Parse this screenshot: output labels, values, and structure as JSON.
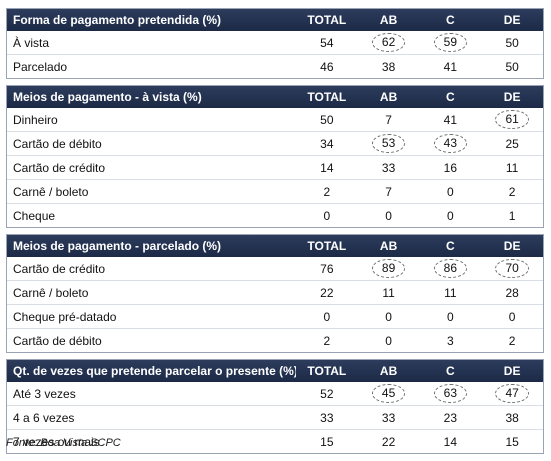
{
  "sections": [
    {
      "header": [
        "Forma de pagamento pretendida (%)",
        "TOTAL",
        "AB",
        "C",
        "DE"
      ],
      "rows": [
        {
          "label": "À vista",
          "values": [
            "54",
            "62",
            "59",
            "50"
          ],
          "circled": [
            false,
            true,
            true,
            false
          ]
        },
        {
          "label": "Parcelado",
          "values": [
            "46",
            "38",
            "41",
            "50"
          ],
          "circled": [
            false,
            false,
            false,
            false
          ]
        }
      ]
    },
    {
      "header": [
        "Meios de pagamento - à vista (%)",
        "TOTAL",
        "AB",
        "C",
        "DE"
      ],
      "rows": [
        {
          "label": "Dinheiro",
          "values": [
            "50",
            "7",
            "41",
            "61"
          ],
          "circled": [
            false,
            false,
            false,
            true
          ]
        },
        {
          "label": "Cartão de débito",
          "values": [
            "34",
            "53",
            "43",
            "25"
          ],
          "circled": [
            false,
            true,
            true,
            false
          ]
        },
        {
          "label": "Cartão de crédito",
          "values": [
            "14",
            "33",
            "16",
            "11"
          ],
          "circled": [
            false,
            false,
            false,
            false
          ]
        },
        {
          "label": "Carnê / boleto",
          "values": [
            "2",
            "7",
            "0",
            "2"
          ],
          "circled": [
            false,
            false,
            false,
            false
          ]
        },
        {
          "label": "Cheque",
          "values": [
            "0",
            "0",
            "0",
            "1"
          ],
          "circled": [
            false,
            false,
            false,
            false
          ]
        }
      ]
    },
    {
      "header": [
        "Meios de pagamento - parcelado (%)",
        "TOTAL",
        "AB",
        "C",
        "DE"
      ],
      "rows": [
        {
          "label": "Cartão de crédito",
          "values": [
            "76",
            "89",
            "86",
            "70"
          ],
          "circled": [
            false,
            true,
            true,
            true
          ]
        },
        {
          "label": "Carnê / boleto",
          "values": [
            "22",
            "11",
            "11",
            "28"
          ],
          "circled": [
            false,
            false,
            false,
            false
          ]
        },
        {
          "label": "Cheque pré-datado",
          "values": [
            "0",
            "0",
            "0",
            "0"
          ],
          "circled": [
            false,
            false,
            false,
            false
          ]
        },
        {
          "label": "Cartão de débito",
          "values": [
            "2",
            "0",
            "3",
            "2"
          ],
          "circled": [
            false,
            false,
            false,
            false
          ]
        }
      ]
    },
    {
      "header": [
        "Qt. de vezes que pretende parcelar o presente (%)",
        "TOTAL",
        "AB",
        "C",
        "DE"
      ],
      "rows": [
        {
          "label": "Até 3 vezes",
          "values": [
            "52",
            "45",
            "63",
            "47"
          ],
          "circled": [
            false,
            true,
            true,
            true
          ]
        },
        {
          "label": "4 a 6 vezes",
          "values": [
            "33",
            "33",
            "23",
            "38"
          ],
          "circled": [
            false,
            false,
            false,
            false
          ]
        },
        {
          "label": "7 vezes ou mais",
          "values": [
            "15",
            "22",
            "14",
            "15"
          ],
          "circled": [
            false,
            false,
            false,
            false
          ]
        }
      ]
    }
  ],
  "source": "Fonte: Boa Vista SCPC"
}
